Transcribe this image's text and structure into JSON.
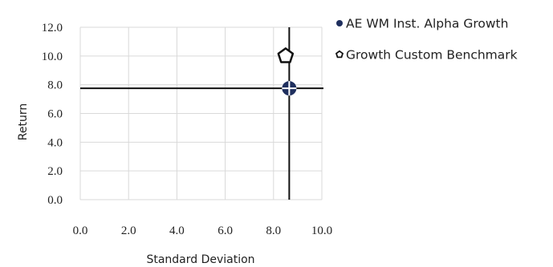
{
  "chart_data": {
    "type": "scatter",
    "xlabel": "Standard Deviation",
    "ylabel": "Return",
    "xlim": [
      0,
      10
    ],
    "ylim": [
      0,
      12
    ],
    "x_ticks": [
      "0.0",
      "2.0",
      "4.0",
      "6.0",
      "8.0",
      "10.0"
    ],
    "y_ticks": [
      "0.0",
      "2.0",
      "4.0",
      "6.0",
      "8.0",
      "10.0",
      "12.0"
    ],
    "grid": true,
    "legend_position": "right",
    "crosshair": {
      "x": 8.65,
      "y": 7.75
    },
    "series": [
      {
        "name": "AE WM Inst. Alpha Growth",
        "marker": "circle",
        "color": "#1f2f5e",
        "x": 8.65,
        "y": 7.75
      },
      {
        "name": "Growth Custom Benchmark",
        "marker": "pentagon",
        "color": "#111111",
        "x": 8.5,
        "y": 10.0
      }
    ]
  }
}
